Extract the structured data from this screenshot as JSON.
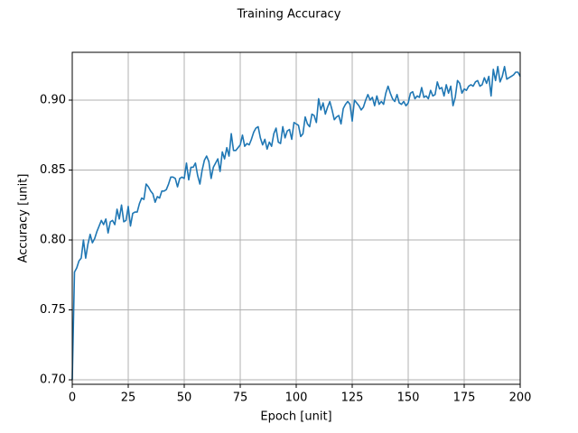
{
  "chart_data": {
    "type": "line",
    "title": "Training Accuracy",
    "xlabel": "Epoch [unit]",
    "ylabel": "Accuracy [unit]",
    "x": [
      0,
      1,
      2,
      3,
      4,
      5,
      6,
      7,
      8,
      9,
      10,
      11,
      12,
      13,
      14,
      15,
      16,
      17,
      18,
      19,
      20,
      21,
      22,
      23,
      24,
      25,
      26,
      27,
      28,
      29,
      30,
      31,
      32,
      33,
      34,
      35,
      36,
      37,
      38,
      39,
      40,
      41,
      42,
      43,
      44,
      45,
      46,
      47,
      48,
      49,
      50,
      51,
      52,
      53,
      54,
      55,
      56,
      57,
      58,
      59,
      60,
      61,
      62,
      63,
      64,
      65,
      66,
      67,
      68,
      69,
      70,
      71,
      72,
      73,
      74,
      75,
      76,
      77,
      78,
      79,
      80,
      81,
      82,
      83,
      84,
      85,
      86,
      87,
      88,
      89,
      90,
      91,
      92,
      93,
      94,
      95,
      96,
      97,
      98,
      99,
      100,
      101,
      102,
      103,
      104,
      105,
      106,
      107,
      108,
      109,
      110,
      111,
      112,
      113,
      114,
      115,
      116,
      117,
      118,
      119,
      120,
      121,
      122,
      123,
      124,
      125,
      126,
      127,
      128,
      129,
      130,
      131,
      132,
      133,
      134,
      135,
      136,
      137,
      138,
      139,
      140,
      141,
      142,
      143,
      144,
      145,
      146,
      147,
      148,
      149,
      150,
      151,
      152,
      153,
      154,
      155,
      156,
      157,
      158,
      159,
      160,
      161,
      162,
      163,
      164,
      165,
      166,
      167,
      168,
      169,
      170,
      171,
      172,
      173,
      174,
      175,
      176,
      177,
      178,
      179,
      180,
      181,
      182,
      183,
      184,
      185,
      186,
      187,
      188,
      189,
      190,
      191,
      192,
      193,
      194,
      195,
      196,
      197,
      198,
      199,
      200
    ],
    "series": [
      {
        "color": "#1f77b4",
        "values": [
          0.7,
          0.777,
          0.78,
          0.785,
          0.787,
          0.8,
          0.787,
          0.797,
          0.804,
          0.798,
          0.801,
          0.806,
          0.81,
          0.814,
          0.811,
          0.815,
          0.805,
          0.813,
          0.814,
          0.811,
          0.822,
          0.815,
          0.825,
          0.813,
          0.814,
          0.824,
          0.81,
          0.819,
          0.82,
          0.82,
          0.826,
          0.83,
          0.829,
          0.84,
          0.838,
          0.835,
          0.833,
          0.827,
          0.831,
          0.83,
          0.835,
          0.835,
          0.836,
          0.84,
          0.845,
          0.845,
          0.844,
          0.838,
          0.844,
          0.845,
          0.844,
          0.855,
          0.843,
          0.852,
          0.852,
          0.855,
          0.846,
          0.84,
          0.85,
          0.857,
          0.86,
          0.856,
          0.844,
          0.852,
          0.855,
          0.858,
          0.849,
          0.863,
          0.858,
          0.866,
          0.86,
          0.876,
          0.864,
          0.864,
          0.866,
          0.868,
          0.875,
          0.867,
          0.869,
          0.868,
          0.872,
          0.877,
          0.88,
          0.881,
          0.873,
          0.868,
          0.872,
          0.865,
          0.87,
          0.867,
          0.876,
          0.88,
          0.87,
          0.869,
          0.881,
          0.873,
          0.878,
          0.879,
          0.872,
          0.884,
          0.883,
          0.882,
          0.874,
          0.876,
          0.888,
          0.883,
          0.881,
          0.89,
          0.889,
          0.884,
          0.901,
          0.893,
          0.898,
          0.89,
          0.895,
          0.899,
          0.893,
          0.886,
          0.888,
          0.889,
          0.883,
          0.894,
          0.897,
          0.899,
          0.897,
          0.885,
          0.9,
          0.898,
          0.896,
          0.893,
          0.895,
          0.9,
          0.904,
          0.9,
          0.902,
          0.896,
          0.903,
          0.897,
          0.899,
          0.897,
          0.905,
          0.91,
          0.905,
          0.901,
          0.899,
          0.904,
          0.898,
          0.897,
          0.899,
          0.896,
          0.898,
          0.905,
          0.906,
          0.901,
          0.903,
          0.902,
          0.909,
          0.902,
          0.903,
          0.901,
          0.907,
          0.903,
          0.904,
          0.913,
          0.908,
          0.909,
          0.903,
          0.911,
          0.905,
          0.91,
          0.896,
          0.902,
          0.914,
          0.912,
          0.905,
          0.908,
          0.907,
          0.91,
          0.911,
          0.91,
          0.913,
          0.914,
          0.91,
          0.911,
          0.916,
          0.912,
          0.917,
          0.903,
          0.922,
          0.914,
          0.924,
          0.913,
          0.917,
          0.924,
          0.915,
          0.916,
          0.917,
          0.918,
          0.92,
          0.92,
          0.917
        ]
      }
    ],
    "xlim": [
      0,
      200
    ],
    "xticks": [
      0,
      25,
      50,
      75,
      100,
      125,
      150,
      175,
      200
    ],
    "ylim": [
      0.6968,
      0.9342
    ],
    "yticks": [
      {
        "value": 0.7,
        "label": "0.70"
      },
      0.75,
      {
        "value": 0.8,
        "label": "0.80"
      },
      0.85,
      {
        "value": 0.9,
        "label": "0.90"
      }
    ],
    "grid": true
  }
}
